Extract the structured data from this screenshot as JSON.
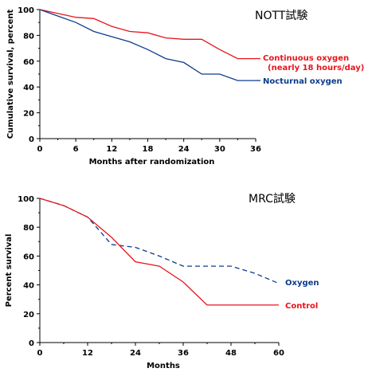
{
  "chart_data": [
    {
      "type": "line",
      "title": "NOTT試験",
      "xlabel": "Months after randomization",
      "ylabel": "Cumulative survival, percent",
      "xlim": [
        0,
        36
      ],
      "ylim": [
        0,
        100
      ],
      "xticks": [
        0,
        6,
        12,
        18,
        24,
        30,
        36
      ],
      "yticks": [
        0,
        20,
        40,
        60,
        80,
        100
      ],
      "series": [
        {
          "name": "Continuous oxygen",
          "name_line2": "(nearly 18 hours/day)",
          "color": "#e8141b",
          "dash": false,
          "x": [
            0,
            3,
            6,
            9,
            12,
            15,
            18,
            21,
            24,
            27,
            30,
            33,
            36
          ],
          "y": [
            100,
            97,
            94,
            93,
            87,
            83,
            82,
            78,
            77,
            77,
            69,
            62,
            62
          ]
        },
        {
          "name": "Nocturnal oxygen",
          "color": "#0d3c8c",
          "dash": false,
          "x": [
            0,
            3,
            6,
            9,
            12,
            15,
            18,
            21,
            24,
            27,
            30,
            33,
            36
          ],
          "y": [
            100,
            95,
            90,
            83,
            79,
            75,
            69,
            62,
            59,
            50,
            50,
            45,
            45
          ]
        }
      ]
    },
    {
      "type": "line",
      "title": "MRC試験",
      "xlabel": "Months",
      "ylabel": "Percent survival",
      "xlim": [
        0,
        60
      ],
      "ylim": [
        0,
        100
      ],
      "xticks": [
        0,
        12,
        24,
        36,
        48,
        60
      ],
      "yticks": [
        0,
        20,
        40,
        60,
        80,
        100
      ],
      "series": [
        {
          "name": "Oxygen",
          "color": "#0d3c8c",
          "dash": true,
          "x": [
            0,
            6,
            12,
            18,
            24,
            30,
            36,
            42,
            48,
            54,
            60
          ],
          "y": [
            100,
            95,
            87,
            68,
            66,
            60,
            53,
            53,
            53,
            48,
            41
          ]
        },
        {
          "name": "Control",
          "color": "#e8141b",
          "dash": false,
          "x": [
            0,
            6,
            12,
            18,
            24,
            30,
            36,
            42,
            48,
            54,
            60
          ],
          "y": [
            100,
            95,
            87,
            73,
            56,
            53,
            42,
            26,
            26,
            26,
            26
          ]
        }
      ]
    }
  ]
}
